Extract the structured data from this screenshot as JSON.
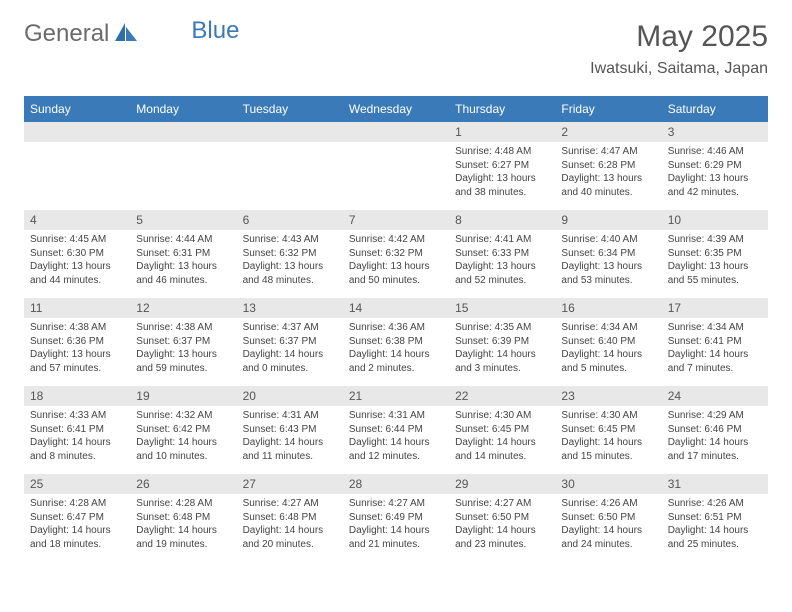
{
  "logo": {
    "part1": "General",
    "part2": "Blue"
  },
  "title": "May 2025",
  "subtitle": "Iwatsuki, Saitama, Japan",
  "colors": {
    "header_bg": "#3a7ab8",
    "header_text": "#ffffff",
    "daynum_bg": "#e8e8e8",
    "text": "#444444",
    "logo_gray": "#6b6b6b",
    "logo_blue": "#3a7ab8"
  },
  "weekdays": [
    "Sunday",
    "Monday",
    "Tuesday",
    "Wednesday",
    "Thursday",
    "Friday",
    "Saturday"
  ],
  "weeks": [
    [
      {
        "day": "",
        "sunrise": "",
        "sunset": "",
        "daylight": ""
      },
      {
        "day": "",
        "sunrise": "",
        "sunset": "",
        "daylight": ""
      },
      {
        "day": "",
        "sunrise": "",
        "sunset": "",
        "daylight": ""
      },
      {
        "day": "",
        "sunrise": "",
        "sunset": "",
        "daylight": ""
      },
      {
        "day": "1",
        "sunrise": "Sunrise: 4:48 AM",
        "sunset": "Sunset: 6:27 PM",
        "daylight": "Daylight: 13 hours and 38 minutes."
      },
      {
        "day": "2",
        "sunrise": "Sunrise: 4:47 AM",
        "sunset": "Sunset: 6:28 PM",
        "daylight": "Daylight: 13 hours and 40 minutes."
      },
      {
        "day": "3",
        "sunrise": "Sunrise: 4:46 AM",
        "sunset": "Sunset: 6:29 PM",
        "daylight": "Daylight: 13 hours and 42 minutes."
      }
    ],
    [
      {
        "day": "4",
        "sunrise": "Sunrise: 4:45 AM",
        "sunset": "Sunset: 6:30 PM",
        "daylight": "Daylight: 13 hours and 44 minutes."
      },
      {
        "day": "5",
        "sunrise": "Sunrise: 4:44 AM",
        "sunset": "Sunset: 6:31 PM",
        "daylight": "Daylight: 13 hours and 46 minutes."
      },
      {
        "day": "6",
        "sunrise": "Sunrise: 4:43 AM",
        "sunset": "Sunset: 6:32 PM",
        "daylight": "Daylight: 13 hours and 48 minutes."
      },
      {
        "day": "7",
        "sunrise": "Sunrise: 4:42 AM",
        "sunset": "Sunset: 6:32 PM",
        "daylight": "Daylight: 13 hours and 50 minutes."
      },
      {
        "day": "8",
        "sunrise": "Sunrise: 4:41 AM",
        "sunset": "Sunset: 6:33 PM",
        "daylight": "Daylight: 13 hours and 52 minutes."
      },
      {
        "day": "9",
        "sunrise": "Sunrise: 4:40 AM",
        "sunset": "Sunset: 6:34 PM",
        "daylight": "Daylight: 13 hours and 53 minutes."
      },
      {
        "day": "10",
        "sunrise": "Sunrise: 4:39 AM",
        "sunset": "Sunset: 6:35 PM",
        "daylight": "Daylight: 13 hours and 55 minutes."
      }
    ],
    [
      {
        "day": "11",
        "sunrise": "Sunrise: 4:38 AM",
        "sunset": "Sunset: 6:36 PM",
        "daylight": "Daylight: 13 hours and 57 minutes."
      },
      {
        "day": "12",
        "sunrise": "Sunrise: 4:38 AM",
        "sunset": "Sunset: 6:37 PM",
        "daylight": "Daylight: 13 hours and 59 minutes."
      },
      {
        "day": "13",
        "sunrise": "Sunrise: 4:37 AM",
        "sunset": "Sunset: 6:37 PM",
        "daylight": "Daylight: 14 hours and 0 minutes."
      },
      {
        "day": "14",
        "sunrise": "Sunrise: 4:36 AM",
        "sunset": "Sunset: 6:38 PM",
        "daylight": "Daylight: 14 hours and 2 minutes."
      },
      {
        "day": "15",
        "sunrise": "Sunrise: 4:35 AM",
        "sunset": "Sunset: 6:39 PM",
        "daylight": "Daylight: 14 hours and 3 minutes."
      },
      {
        "day": "16",
        "sunrise": "Sunrise: 4:34 AM",
        "sunset": "Sunset: 6:40 PM",
        "daylight": "Daylight: 14 hours and 5 minutes."
      },
      {
        "day": "17",
        "sunrise": "Sunrise: 4:34 AM",
        "sunset": "Sunset: 6:41 PM",
        "daylight": "Daylight: 14 hours and 7 minutes."
      }
    ],
    [
      {
        "day": "18",
        "sunrise": "Sunrise: 4:33 AM",
        "sunset": "Sunset: 6:41 PM",
        "daylight": "Daylight: 14 hours and 8 minutes."
      },
      {
        "day": "19",
        "sunrise": "Sunrise: 4:32 AM",
        "sunset": "Sunset: 6:42 PM",
        "daylight": "Daylight: 14 hours and 10 minutes."
      },
      {
        "day": "20",
        "sunrise": "Sunrise: 4:31 AM",
        "sunset": "Sunset: 6:43 PM",
        "daylight": "Daylight: 14 hours and 11 minutes."
      },
      {
        "day": "21",
        "sunrise": "Sunrise: 4:31 AM",
        "sunset": "Sunset: 6:44 PM",
        "daylight": "Daylight: 14 hours and 12 minutes."
      },
      {
        "day": "22",
        "sunrise": "Sunrise: 4:30 AM",
        "sunset": "Sunset: 6:45 PM",
        "daylight": "Daylight: 14 hours and 14 minutes."
      },
      {
        "day": "23",
        "sunrise": "Sunrise: 4:30 AM",
        "sunset": "Sunset: 6:45 PM",
        "daylight": "Daylight: 14 hours and 15 minutes."
      },
      {
        "day": "24",
        "sunrise": "Sunrise: 4:29 AM",
        "sunset": "Sunset: 6:46 PM",
        "daylight": "Daylight: 14 hours and 17 minutes."
      }
    ],
    [
      {
        "day": "25",
        "sunrise": "Sunrise: 4:28 AM",
        "sunset": "Sunset: 6:47 PM",
        "daylight": "Daylight: 14 hours and 18 minutes."
      },
      {
        "day": "26",
        "sunrise": "Sunrise: 4:28 AM",
        "sunset": "Sunset: 6:48 PM",
        "daylight": "Daylight: 14 hours and 19 minutes."
      },
      {
        "day": "27",
        "sunrise": "Sunrise: 4:27 AM",
        "sunset": "Sunset: 6:48 PM",
        "daylight": "Daylight: 14 hours and 20 minutes."
      },
      {
        "day": "28",
        "sunrise": "Sunrise: 4:27 AM",
        "sunset": "Sunset: 6:49 PM",
        "daylight": "Daylight: 14 hours and 21 minutes."
      },
      {
        "day": "29",
        "sunrise": "Sunrise: 4:27 AM",
        "sunset": "Sunset: 6:50 PM",
        "daylight": "Daylight: 14 hours and 23 minutes."
      },
      {
        "day": "30",
        "sunrise": "Sunrise: 4:26 AM",
        "sunset": "Sunset: 6:50 PM",
        "daylight": "Daylight: 14 hours and 24 minutes."
      },
      {
        "day": "31",
        "sunrise": "Sunrise: 4:26 AM",
        "sunset": "Sunset: 6:51 PM",
        "daylight": "Daylight: 14 hours and 25 minutes."
      }
    ]
  ]
}
